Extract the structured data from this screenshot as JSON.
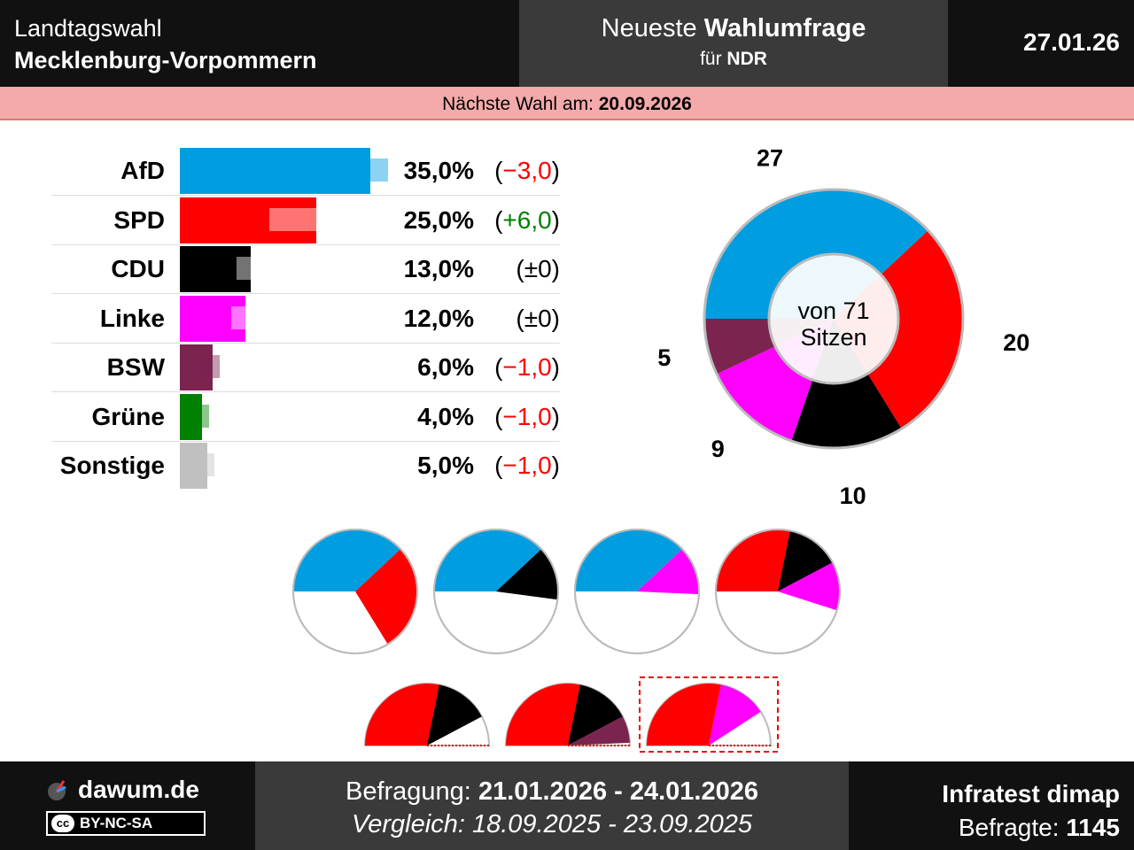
{
  "header": {
    "line1": "Landtagswahl",
    "line2": "Mecklenburg-Vorpommern",
    "mid_prefix": "Neueste ",
    "mid_bold": "Wahlumfrage",
    "mid_sub_prefix": "für ",
    "mid_sub_bold": "NDR",
    "date": "27.01.26"
  },
  "subheader": {
    "label": "Nächste Wahl am: ",
    "date": "20.09.2026"
  },
  "footer": {
    "brand": "dawum.de",
    "license": "BY-NC-SA",
    "license_cc": "cc",
    "survey_label": "Befragung: ",
    "survey_range": "21.01.2026 - 24.01.2026",
    "compare_label": "Vergleich: ",
    "compare_range": "18.09.2025 - 23.09.2025",
    "institute": "Infratest dimap",
    "respondents_label": "Befragte: ",
    "respondents": "1145"
  },
  "colors": {
    "AfD": "#009ee0",
    "SPD": "#ff0000",
    "CDU": "#000000",
    "Linke": "#ff00ff",
    "BSW": "#7b2450",
    "Grüne": "#008000",
    "Sonstige": "#c0c0c0"
  },
  "chart_data": [
    {
      "type": "bar",
      "categories": [
        "AfD",
        "SPD",
        "CDU",
        "Linke",
        "BSW",
        "Grüne",
        "Sonstige"
      ],
      "values": [
        35.0,
        25.0,
        13.0,
        12.0,
        6.0,
        4.0,
        5.0
      ],
      "previous": [
        38.0,
        19.0,
        13.0,
        12.0,
        7.0,
        5.0,
        6.0
      ],
      "value_labels": [
        "35,0%",
        "25,0%",
        "13,0%",
        "12,0%",
        "6,0%",
        "4,0%",
        "5,0%"
      ],
      "change_labels": [
        "(−3,0)",
        "(+6,0)",
        "(±0)",
        "(±0)",
        "(−1,0)",
        "(−1,0)",
        "(−1,0)"
      ],
      "change_colors": [
        "#ff0000",
        "#008000",
        "#000000",
        "#000000",
        "#ff0000",
        "#ff0000",
        "#ff0000"
      ]
    },
    {
      "type": "pie",
      "title": "von 71 Sitzen",
      "categories": [
        "AfD",
        "SPD",
        "CDU",
        "Linke",
        "BSW"
      ],
      "values": [
        27,
        20,
        10,
        9,
        5
      ],
      "total": 71
    }
  ],
  "coalitions": [
    {
      "parties": [
        "AfD",
        "SPD"
      ],
      "seats": [
        27,
        20
      ]
    },
    {
      "parties": [
        "AfD",
        "CDU"
      ],
      "seats": [
        27,
        10
      ]
    },
    {
      "parties": [
        "AfD",
        "Linke"
      ],
      "seats": [
        27,
        9
      ]
    },
    {
      "parties": [
        "SPD",
        "CDU",
        "Linke"
      ],
      "seats": [
        20,
        10,
        9
      ]
    },
    {
      "parties": [
        "SPD",
        "CDU"
      ],
      "seats": [
        20,
        10
      ]
    },
    {
      "parties": [
        "SPD",
        "CDU",
        "BSW"
      ],
      "seats": [
        20,
        10,
        5
      ]
    },
    {
      "parties": [
        "SPD",
        "Linke"
      ],
      "seats": [
        20,
        9
      ],
      "highlighted": true
    }
  ]
}
